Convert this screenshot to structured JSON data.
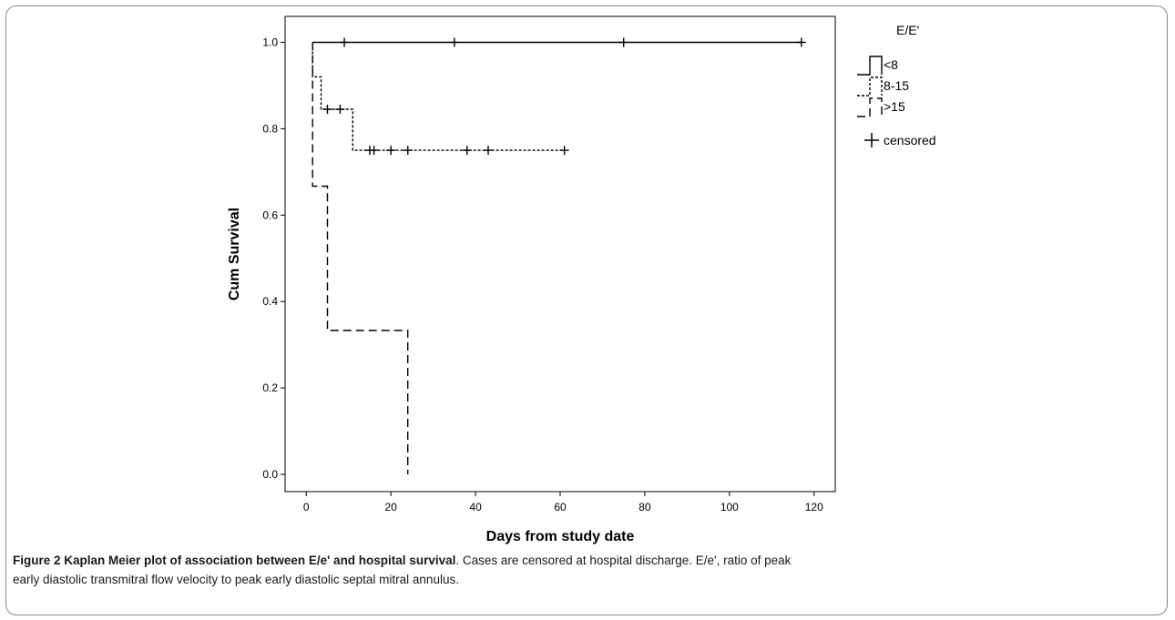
{
  "chart_data": {
    "type": "line",
    "subtype": "kaplan-meier",
    "title": "",
    "xlabel": "Days from study date",
    "ylabel": "Cum Survival",
    "xlim": [
      -5,
      125
    ],
    "ylim": [
      -0.04,
      1.06
    ],
    "xticks": [
      0,
      20,
      40,
      60,
      80,
      100,
      120
    ],
    "yticks": [
      0.0,
      0.2,
      0.4,
      0.6,
      0.8,
      1.0
    ],
    "xtick_labels": [
      "0",
      "20",
      "40",
      "60",
      "80",
      "100",
      "120"
    ],
    "ytick_labels": [
      "0.0",
      "0.2",
      "0.4",
      "0.6",
      "0.8",
      "1.0"
    ],
    "grid": false,
    "legend": {
      "title": "E/E'",
      "placement": "right",
      "censored_label": "censored"
    },
    "series": [
      {
        "name": "<8",
        "style": "solid",
        "steps": [
          [
            1.5,
            1.0
          ],
          [
            117,
            1.0
          ]
        ],
        "censored": [
          [
            9,
            1.0
          ],
          [
            35,
            1.0
          ],
          [
            75,
            1.0
          ],
          [
            117,
            1.0
          ]
        ]
      },
      {
        "name": "8-15",
        "style": "dotted",
        "steps": [
          [
            1.5,
            1.0
          ],
          [
            1.5,
            0.92
          ],
          [
            3.5,
            0.92
          ],
          [
            3.5,
            0.845
          ],
          [
            11,
            0.845
          ],
          [
            11,
            0.75
          ],
          [
            61,
            0.75
          ]
        ],
        "censored": [
          [
            5,
            0.845
          ],
          [
            8,
            0.845
          ],
          [
            15,
            0.75
          ],
          [
            16,
            0.75
          ],
          [
            20,
            0.75
          ],
          [
            24,
            0.75
          ],
          [
            38,
            0.75
          ],
          [
            43,
            0.75
          ],
          [
            61,
            0.75
          ]
        ]
      },
      {
        "name": ">15",
        "style": "dashed",
        "steps": [
          [
            1.5,
            1.0
          ],
          [
            1.5,
            0.667
          ],
          [
            5,
            0.667
          ],
          [
            5,
            0.333
          ],
          [
            24,
            0.333
          ],
          [
            24,
            0.0
          ]
        ],
        "censored": []
      }
    ]
  },
  "caption": {
    "figure_label": "Figure 2",
    "title": "Kaplan Meier plot of association between E/e' and hospital survival",
    "line1_rest": ". Cases are censored at hospital discharge. E/e', ratio of peak",
    "line2": "early diastolic transmitral flow velocity to peak early diastolic septal mitral annulus."
  }
}
